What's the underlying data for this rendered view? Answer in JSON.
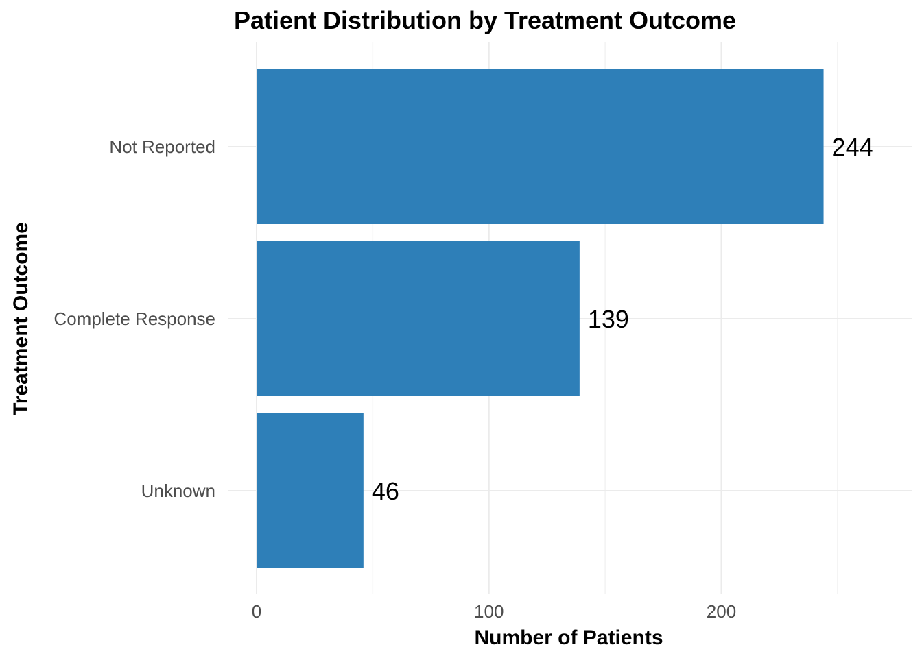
{
  "chart_data": {
    "type": "bar",
    "orientation": "horizontal",
    "title": "Patient Distribution by Treatment Outcome",
    "xlabel": "Number of Patients",
    "ylabel": "Treatment Outcome",
    "categories": [
      "Not Reported",
      "Complete Response",
      "Unknown"
    ],
    "values": [
      244,
      139,
      46
    ],
    "data_labels": [
      "244",
      "139",
      "46"
    ],
    "xlim": [
      0,
      281
    ],
    "x_ticks": [
      0,
      100,
      200
    ],
    "x_tick_labels": [
      "0",
      "100",
      "200"
    ],
    "x_minor_ticks": [
      50,
      150,
      250
    ],
    "grid": true,
    "legend": "none",
    "bar_color": "#2E7FB8"
  }
}
